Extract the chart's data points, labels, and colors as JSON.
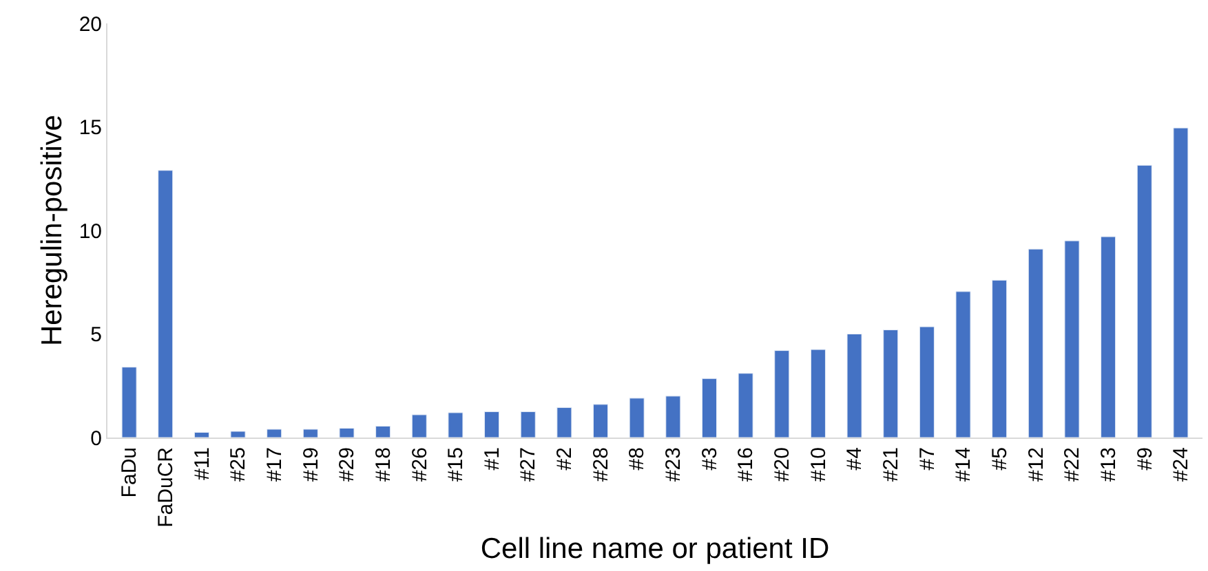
{
  "chart_data": {
    "type": "bar",
    "xlabel": "Cell line name or patient ID",
    "ylabel": "Heregulin-positive",
    "categories": [
      "FaDu",
      "FaDuCR",
      "#11",
      "#25",
      "#17",
      "#19",
      "#29",
      "#18",
      "#26",
      "#15",
      "#1",
      "#27",
      "#2",
      "#28",
      "#8",
      "#23",
      "#3",
      "#16",
      "#20",
      "#10",
      "#4",
      "#21",
      "#7",
      "#14",
      "#5",
      "#12",
      "#22",
      "#13",
      "#9",
      "#24"
    ],
    "values": [
      3.4,
      12.9,
      0.25,
      0.3,
      0.4,
      0.4,
      0.45,
      0.55,
      1.1,
      1.2,
      1.25,
      1.25,
      1.45,
      1.6,
      1.9,
      2.0,
      2.85,
      3.1,
      4.2,
      4.25,
      5.0,
      5.2,
      5.35,
      7.05,
      7.6,
      9.1,
      9.5,
      9.7,
      13.15,
      14.95
    ],
    "color": "#4472c4",
    "ylim": [
      0,
      20
    ],
    "yticks": [
      0,
      5,
      10,
      15,
      20
    ]
  }
}
